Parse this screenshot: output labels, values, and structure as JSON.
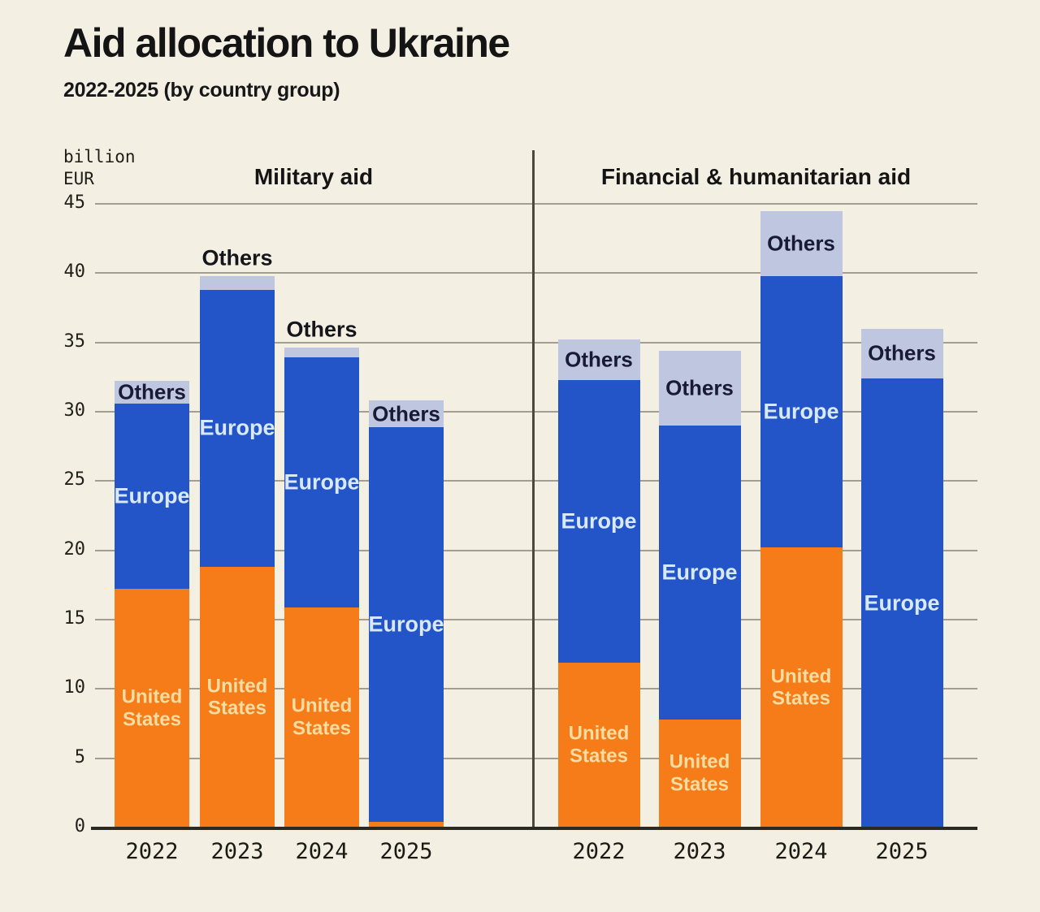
{
  "header": {
    "title": "Aid allocation to Ukraine",
    "subtitle": "2022-2025 (by country group)"
  },
  "axis": {
    "unit_lines": [
      "billion",
      "EUR"
    ]
  },
  "chart_data": {
    "type": "bar",
    "stacked": true,
    "title": "Aid allocation to Ukraine",
    "subtitle": "2022-2025 (by country group)",
    "unit": "billion EUR",
    "ylim": [
      0,
      45
    ],
    "yticks": [
      0,
      5,
      10,
      15,
      20,
      25,
      30,
      35,
      40,
      45
    ],
    "grid": true,
    "legend_position": "labels-inside-bars",
    "categories": [
      "2022",
      "2023",
      "2024",
      "2025"
    ],
    "segment_labels": {
      "united_states": "United States",
      "europe": "Europe",
      "others": "Others"
    },
    "colors": {
      "united_states": "#F57C19",
      "europe": "#2354C8",
      "others": "#BFC6E0",
      "background": "#F4EFE3"
    },
    "panels": [
      {
        "title": "Military aid",
        "bars": [
          {
            "year": "2022",
            "united_states": 17.2,
            "europe": 13.4,
            "others": 1.6,
            "total": 32.2,
            "others_label_position": "inside",
            "show_us_label": true
          },
          {
            "year": "2023",
            "united_states": 18.8,
            "europe": 20.0,
            "others": 1.0,
            "total": 39.8,
            "others_label_position": "above",
            "show_us_label": true
          },
          {
            "year": "2024",
            "united_states": 15.9,
            "europe": 18.0,
            "others": 0.7,
            "total": 34.6,
            "others_label_position": "above",
            "show_us_label": true
          },
          {
            "year": "2025",
            "united_states": 0.4,
            "europe": 28.5,
            "others": 1.9,
            "total": 30.8,
            "others_label_position": "inside",
            "show_us_label": false
          }
        ]
      },
      {
        "title": "Financial & humanitarian aid",
        "bars": [
          {
            "year": "2022",
            "united_states": 11.9,
            "europe": 20.4,
            "others": 2.9,
            "total": 35.2,
            "others_label_position": "inside",
            "show_us_label": true
          },
          {
            "year": "2023",
            "united_states": 7.8,
            "europe": 21.2,
            "others": 5.4,
            "total": 34.4,
            "others_label_position": "inside",
            "show_us_label": true
          },
          {
            "year": "2024",
            "united_states": 20.2,
            "europe": 19.6,
            "others": 4.7,
            "total": 44.5,
            "others_label_position": "inside",
            "show_us_label": true
          },
          {
            "year": "2025",
            "united_states": 0.0,
            "europe": 32.4,
            "others": 3.6,
            "total": 36.0,
            "others_label_position": "inside",
            "show_us_label": false
          }
        ]
      }
    ]
  }
}
